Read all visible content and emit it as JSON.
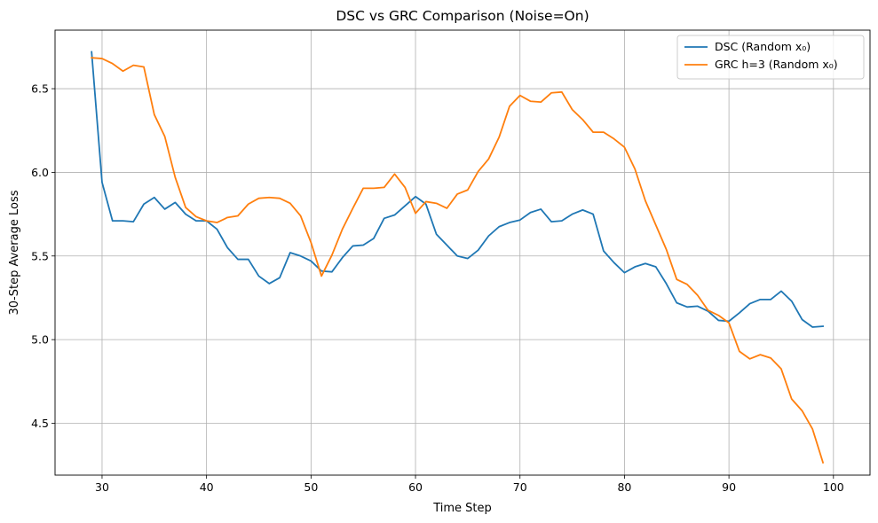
{
  "chart_data": {
    "type": "line",
    "title": "DSC vs GRC Comparison (Noise=On)",
    "xlabel": "Time Step",
    "ylabel": "30-Step Average Loss",
    "xlim": [
      25.5,
      103.5
    ],
    "ylim": [
      4.19,
      6.85
    ],
    "xticks": [
      30,
      40,
      50,
      60,
      70,
      80,
      90,
      100
    ],
    "yticks": [
      4.5,
      5.0,
      5.5,
      6.0,
      6.5
    ],
    "xtick_labels": [
      "30",
      "40",
      "50",
      "60",
      "70",
      "80",
      "90",
      "100"
    ],
    "ytick_labels": [
      "4.5",
      "5.0",
      "5.5",
      "6.0",
      "6.5"
    ],
    "grid": true,
    "legend_position": "top-right",
    "x": [
      29,
      30,
      31,
      32,
      33,
      34,
      35,
      36,
      37,
      38,
      39,
      40,
      41,
      42,
      43,
      44,
      45,
      46,
      47,
      48,
      49,
      50,
      51,
      52,
      53,
      54,
      55,
      56,
      57,
      58,
      59,
      60,
      61,
      62,
      63,
      64,
      65,
      66,
      67,
      68,
      69,
      70,
      71,
      72,
      73,
      74,
      75,
      76,
      77,
      78,
      79,
      80,
      81,
      82,
      83,
      84,
      85,
      86,
      87,
      88,
      89,
      90,
      91,
      92,
      93,
      94,
      95,
      96,
      97,
      98,
      99
    ],
    "series": [
      {
        "name": "DSC (Random x₀)",
        "color": "#1f77b4",
        "values": [
          6.72,
          5.94,
          5.71,
          5.71,
          5.705,
          5.81,
          5.85,
          5.78,
          5.82,
          5.75,
          5.71,
          5.71,
          5.66,
          5.55,
          5.48,
          5.48,
          5.38,
          5.335,
          5.37,
          5.52,
          5.5,
          5.47,
          5.41,
          5.405,
          5.49,
          5.56,
          5.565,
          5.605,
          5.725,
          5.745,
          5.8,
          5.855,
          5.81,
          5.63,
          5.565,
          5.5,
          5.485,
          5.535,
          5.62,
          5.675,
          5.7,
          5.715,
          5.76,
          5.78,
          5.705,
          5.71,
          5.75,
          5.775,
          5.75,
          5.53,
          5.46,
          5.4,
          5.435,
          5.455,
          5.435,
          5.335,
          5.22,
          5.195,
          5.2,
          5.17,
          5.115,
          5.11,
          5.16,
          5.215,
          5.24,
          5.24,
          5.29,
          5.23,
          5.12,
          5.075,
          5.08
        ]
      },
      {
        "name": "GRC h=3 (Random x₀)",
        "color": "#ff7f0e",
        "values": [
          6.685,
          6.68,
          6.65,
          6.605,
          6.64,
          6.63,
          6.345,
          6.215,
          5.97,
          5.79,
          5.735,
          5.71,
          5.7,
          5.73,
          5.74,
          5.81,
          5.845,
          5.85,
          5.845,
          5.815,
          5.74,
          5.58,
          5.38,
          5.505,
          5.66,
          5.785,
          5.905,
          5.905,
          5.91,
          5.99,
          5.91,
          5.755,
          5.825,
          5.815,
          5.785,
          5.87,
          5.895,
          6.005,
          6.08,
          6.21,
          6.395,
          6.46,
          6.425,
          6.42,
          6.475,
          6.48,
          6.375,
          6.315,
          6.24,
          6.24,
          6.2,
          6.15,
          6.02,
          5.83,
          5.685,
          5.54,
          5.36,
          5.33,
          5.265,
          5.175,
          5.145,
          5.1,
          4.93,
          4.885,
          4.91,
          4.89,
          4.825,
          4.645,
          4.575,
          4.465,
          4.265
        ]
      }
    ]
  }
}
